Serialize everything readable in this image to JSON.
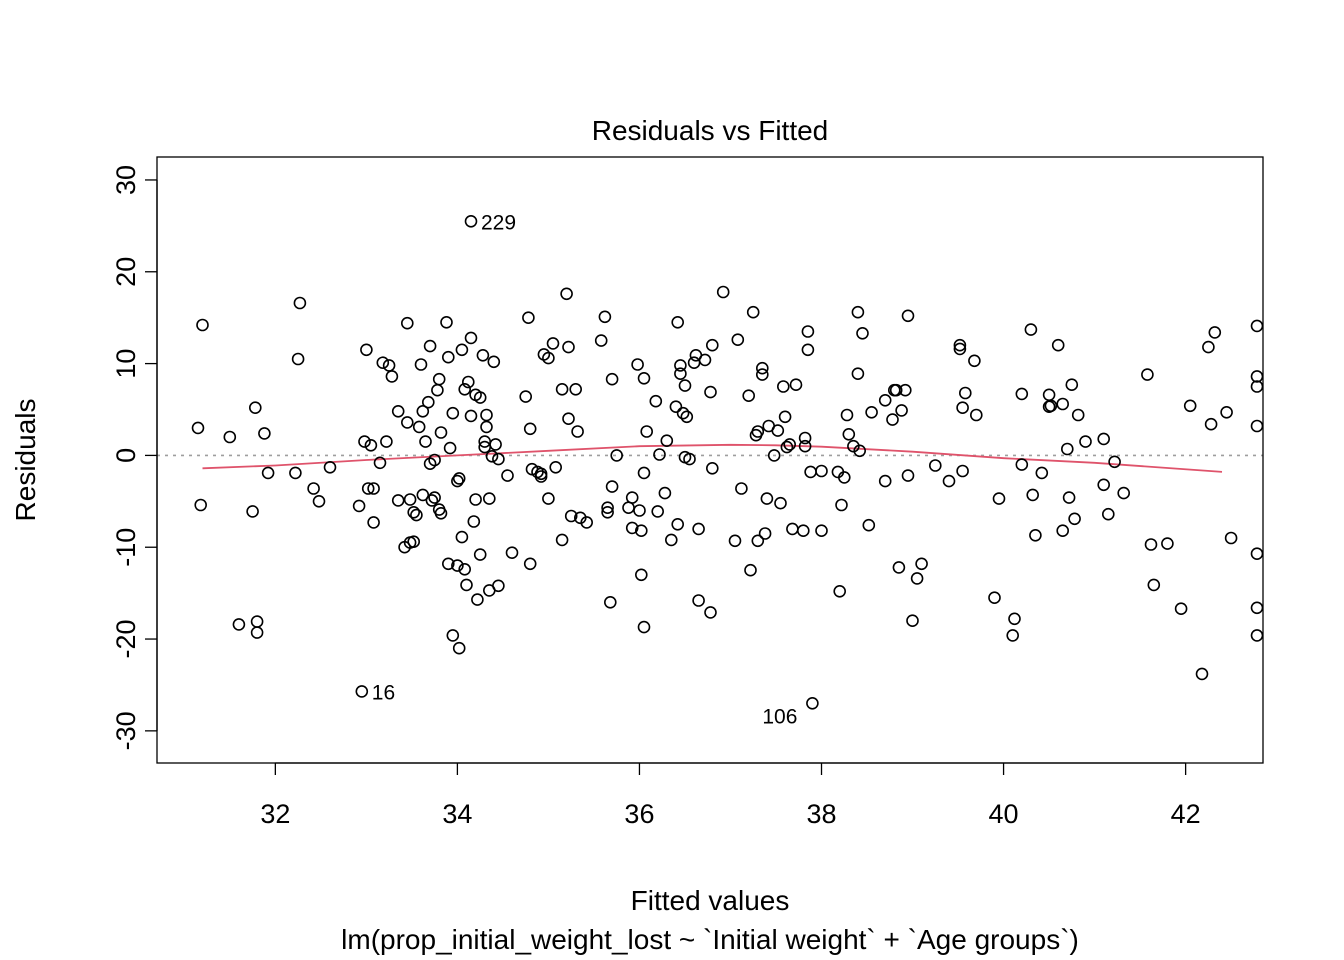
{
  "chart_data": {
    "type": "scatter",
    "title": "Residuals vs Fitted",
    "xlabel": "Fitted values",
    "subtitle": "lm(prop_initial_weight_lost ~ `Initial weight` + `Age groups`)",
    "ylabel": "Residuals",
    "xlim": [
      30.7,
      42.85
    ],
    "ylim": [
      -33.5,
      32.5
    ],
    "xticks": [
      32,
      34,
      36,
      38,
      40,
      42
    ],
    "yticks": [
      -30,
      -20,
      -10,
      0,
      10,
      20,
      30
    ],
    "xtick_labels": [
      "32",
      "34",
      "36",
      "38",
      "40",
      "42"
    ],
    "ytick_labels": [
      "-30",
      "-20",
      "-10",
      "0",
      "10",
      "20",
      "30"
    ],
    "grid": false,
    "reference_line": {
      "y": 0,
      "style": "dotted",
      "color": "#9e9e9e"
    },
    "smoother": {
      "color": "#DF536B",
      "x": [
        31.2,
        32.0,
        33.0,
        34.0,
        35.0,
        36.0,
        37.0,
        37.5,
        38.0,
        39.0,
        40.0,
        41.0,
        42.4
      ],
      "y": [
        -1.4,
        -1.1,
        -0.5,
        0.0,
        0.5,
        1.0,
        1.15,
        1.1,
        0.95,
        0.4,
        -0.3,
        -0.8,
        -1.8
      ]
    },
    "labeled_points": [
      {
        "label": "229",
        "x": 34.15,
        "y": 25.5,
        "side": "right"
      },
      {
        "label": "16",
        "x": 32.95,
        "y": -25.7,
        "side": "right"
      },
      {
        "label": "106",
        "x": 37.9,
        "y": -27.0,
        "side": "left"
      }
    ],
    "points": [
      [
        31.15,
        3.0
      ],
      [
        31.2,
        14.2
      ],
      [
        31.18,
        -5.4
      ],
      [
        31.5,
        2.0
      ],
      [
        31.6,
        -18.4
      ],
      [
        31.75,
        -6.1
      ],
      [
        31.78,
        5.2
      ],
      [
        31.8,
        -18.1
      ],
      [
        31.8,
        -19.3
      ],
      [
        31.88,
        2.4
      ],
      [
        31.92,
        -1.9
      ],
      [
        32.22,
        -1.9
      ],
      [
        32.25,
        10.5
      ],
      [
        32.27,
        16.6
      ],
      [
        32.42,
        -3.6
      ],
      [
        32.48,
        -5.0
      ],
      [
        32.6,
        -1.3
      ],
      [
        32.92,
        -5.5
      ],
      [
        32.98,
        1.5
      ],
      [
        33.0,
        11.5
      ],
      [
        33.02,
        -3.6
      ],
      [
        33.05,
        1.1
      ],
      [
        33.08,
        -3.6
      ],
      [
        33.08,
        -7.3
      ],
      [
        33.15,
        -0.8
      ],
      [
        33.18,
        10.1
      ],
      [
        33.22,
        1.5
      ],
      [
        33.25,
        9.8
      ],
      [
        33.28,
        8.6
      ],
      [
        33.35,
        4.8
      ],
      [
        33.35,
        -4.9
      ],
      [
        33.42,
        -10.0
      ],
      [
        33.45,
        14.4
      ],
      [
        33.45,
        3.6
      ],
      [
        33.48,
        -4.8
      ],
      [
        33.48,
        -9.5
      ],
      [
        33.52,
        -6.2
      ],
      [
        33.52,
        -9.4
      ],
      [
        33.55,
        -6.5
      ],
      [
        33.58,
        3.1
      ],
      [
        33.6,
        9.9
      ],
      [
        33.62,
        -4.3
      ],
      [
        33.62,
        4.8
      ],
      [
        33.65,
        1.5
      ],
      [
        33.68,
        5.8
      ],
      [
        33.7,
        11.9
      ],
      [
        33.7,
        -0.9
      ],
      [
        33.72,
        -4.9
      ],
      [
        33.75,
        -4.6
      ],
      [
        33.75,
        -0.5
      ],
      [
        33.78,
        7.1
      ],
      [
        33.8,
        8.3
      ],
      [
        33.8,
        -5.9
      ],
      [
        33.82,
        2.5
      ],
      [
        33.82,
        -6.3
      ],
      [
        33.88,
        14.5
      ],
      [
        33.9,
        10.7
      ],
      [
        33.9,
        -11.8
      ],
      [
        33.92,
        0.8
      ],
      [
        33.95,
        -19.6
      ],
      [
        33.95,
        4.6
      ],
      [
        34.0,
        -12.0
      ],
      [
        34.0,
        -2.8
      ],
      [
        34.02,
        -21.0
      ],
      [
        34.02,
        -2.5
      ],
      [
        34.05,
        -8.9
      ],
      [
        34.05,
        11.5
      ],
      [
        34.08,
        -12.4
      ],
      [
        34.08,
        7.2
      ],
      [
        34.1,
        -14.1
      ],
      [
        34.12,
        8.0
      ],
      [
        34.15,
        12.8
      ],
      [
        34.15,
        4.3
      ],
      [
        34.18,
        -7.2
      ],
      [
        34.2,
        -4.8
      ],
      [
        34.2,
        6.6
      ],
      [
        34.22,
        -15.7
      ],
      [
        34.25,
        6.3
      ],
      [
        34.25,
        -10.8
      ],
      [
        34.28,
        10.9
      ],
      [
        34.3,
        1.5
      ],
      [
        34.3,
        0.9
      ],
      [
        34.32,
        4.4
      ],
      [
        34.32,
        3.1
      ],
      [
        34.35,
        -4.7
      ],
      [
        34.35,
        -14.7
      ],
      [
        34.38,
        -0.1
      ],
      [
        34.4,
        10.2
      ],
      [
        34.42,
        1.2
      ],
      [
        34.45,
        -14.2
      ],
      [
        34.45,
        -0.4
      ],
      [
        34.55,
        -2.2
      ],
      [
        34.6,
        -10.6
      ],
      [
        34.75,
        6.4
      ],
      [
        34.78,
        15.0
      ],
      [
        34.8,
        2.9
      ],
      [
        34.8,
        -11.8
      ],
      [
        34.82,
        -1.5
      ],
      [
        34.88,
        -1.8
      ],
      [
        34.92,
        -2.0
      ],
      [
        34.92,
        -2.3
      ],
      [
        34.95,
        11.0
      ],
      [
        35.0,
        -4.7
      ],
      [
        35.0,
        10.6
      ],
      [
        35.05,
        12.2
      ],
      [
        35.08,
        -1.3
      ],
      [
        35.15,
        7.2
      ],
      [
        35.15,
        -9.2
      ],
      [
        35.2,
        17.6
      ],
      [
        35.22,
        11.8
      ],
      [
        35.22,
        4.0
      ],
      [
        35.25,
        -6.6
      ],
      [
        35.3,
        7.2
      ],
      [
        35.32,
        2.6
      ],
      [
        35.35,
        -6.8
      ],
      [
        35.42,
        -7.3
      ],
      [
        35.58,
        12.5
      ],
      [
        35.62,
        15.1
      ],
      [
        35.65,
        -5.7
      ],
      [
        35.65,
        -6.2
      ],
      [
        35.68,
        -16.0
      ],
      [
        35.7,
        8.3
      ],
      [
        35.7,
        -3.4
      ],
      [
        35.75,
        0.0
      ],
      [
        35.88,
        -5.7
      ],
      [
        35.92,
        -7.9
      ],
      [
        35.92,
        -4.6
      ],
      [
        35.98,
        9.9
      ],
      [
        36.0,
        -6.0
      ],
      [
        36.02,
        -8.2
      ],
      [
        36.02,
        -13.0
      ],
      [
        36.05,
        8.4
      ],
      [
        36.05,
        -1.9
      ],
      [
        36.05,
        -18.7
      ],
      [
        36.08,
        2.6
      ],
      [
        36.18,
        5.9
      ],
      [
        36.2,
        -6.1
      ],
      [
        36.22,
        0.1
      ],
      [
        36.28,
        -4.1
      ],
      [
        36.3,
        1.6
      ],
      [
        36.35,
        -9.2
      ],
      [
        36.4,
        5.3
      ],
      [
        36.42,
        -7.5
      ],
      [
        36.42,
        14.5
      ],
      [
        36.45,
        9.8
      ],
      [
        36.45,
        8.9
      ],
      [
        36.48,
        4.6
      ],
      [
        36.5,
        -0.2
      ],
      [
        36.5,
        7.6
      ],
      [
        36.52,
        4.2
      ],
      [
        36.55,
        -0.4
      ],
      [
        36.6,
        10.1
      ],
      [
        36.62,
        10.9
      ],
      [
        36.65,
        -8.0
      ],
      [
        36.65,
        -15.8
      ],
      [
        36.72,
        10.4
      ],
      [
        36.78,
        6.9
      ],
      [
        36.78,
        -17.1
      ],
      [
        36.8,
        -1.4
      ],
      [
        36.8,
        12.0
      ],
      [
        36.92,
        17.8
      ],
      [
        37.05,
        -9.3
      ],
      [
        37.08,
        12.6
      ],
      [
        37.12,
        -3.6
      ],
      [
        37.2,
        6.5
      ],
      [
        37.22,
        -12.5
      ],
      [
        37.25,
        15.6
      ],
      [
        37.28,
        2.2
      ],
      [
        37.3,
        -9.3
      ],
      [
        37.3,
        2.6
      ],
      [
        37.35,
        9.5
      ],
      [
        37.35,
        8.8
      ],
      [
        37.38,
        -8.5
      ],
      [
        37.4,
        -4.7
      ],
      [
        37.42,
        3.2
      ],
      [
        37.48,
        0.0
      ],
      [
        37.52,
        2.7
      ],
      [
        37.55,
        -5.2
      ],
      [
        37.58,
        7.5
      ],
      [
        37.6,
        4.2
      ],
      [
        37.62,
        0.9
      ],
      [
        37.65,
        1.2
      ],
      [
        37.68,
        -8.0
      ],
      [
        37.72,
        7.7
      ],
      [
        37.8,
        -8.2
      ],
      [
        37.82,
        1.9
      ],
      [
        37.82,
        1.0
      ],
      [
        37.85,
        13.5
      ],
      [
        37.85,
        11.5
      ],
      [
        37.88,
        -1.8
      ],
      [
        38.0,
        -8.2
      ],
      [
        38.0,
        -1.7
      ],
      [
        38.18,
        -1.8
      ],
      [
        38.2,
        -14.8
      ],
      [
        38.22,
        -5.4
      ],
      [
        38.25,
        -2.4
      ],
      [
        38.28,
        4.4
      ],
      [
        38.3,
        2.3
      ],
      [
        38.35,
        1.0
      ],
      [
        38.4,
        8.9
      ],
      [
        38.4,
        15.6
      ],
      [
        38.42,
        0.5
      ],
      [
        38.45,
        13.3
      ],
      [
        38.52,
        -7.6
      ],
      [
        38.55,
        4.7
      ],
      [
        38.7,
        -2.8
      ],
      [
        38.7,
        6.0
      ],
      [
        38.78,
        3.9
      ],
      [
        38.8,
        7.1
      ],
      [
        38.82,
        7.1
      ],
      [
        38.85,
        -12.2
      ],
      [
        38.88,
        4.9
      ],
      [
        38.92,
        7.1
      ],
      [
        38.95,
        15.2
      ],
      [
        38.95,
        -2.2
      ],
      [
        39.0,
        -18.0
      ],
      [
        39.05,
        -13.4
      ],
      [
        39.1,
        -11.8
      ],
      [
        39.25,
        -1.1
      ],
      [
        39.4,
        -2.8
      ],
      [
        39.52,
        11.6
      ],
      [
        39.52,
        12.0
      ],
      [
        39.55,
        -1.7
      ],
      [
        39.55,
        5.2
      ],
      [
        39.58,
        6.8
      ],
      [
        39.68,
        10.3
      ],
      [
        39.7,
        4.4
      ],
      [
        39.9,
        -15.5
      ],
      [
        39.95,
        -4.7
      ],
      [
        40.1,
        -19.6
      ],
      [
        40.12,
        -17.8
      ],
      [
        40.2,
        6.7
      ],
      [
        40.2,
        -1.0
      ],
      [
        40.3,
        13.7
      ],
      [
        40.32,
        -4.3
      ],
      [
        40.35,
        -8.7
      ],
      [
        40.42,
        -1.9
      ],
      [
        40.5,
        5.3
      ],
      [
        40.5,
        6.6
      ],
      [
        40.52,
        5.4
      ],
      [
        40.6,
        12.0
      ],
      [
        40.65,
        -8.2
      ],
      [
        40.65,
        5.6
      ],
      [
        40.7,
        0.7
      ],
      [
        40.72,
        -4.6
      ],
      [
        40.75,
        7.7
      ],
      [
        40.78,
        -6.9
      ],
      [
        40.82,
        4.4
      ],
      [
        40.9,
        1.5
      ],
      [
        41.1,
        1.8
      ],
      [
        41.1,
        -3.2
      ],
      [
        41.15,
        -6.4
      ],
      [
        41.22,
        -0.7
      ],
      [
        41.32,
        -4.1
      ],
      [
        41.58,
        8.8
      ],
      [
        41.62,
        -9.7
      ],
      [
        41.65,
        -14.1
      ],
      [
        41.8,
        -9.6
      ],
      [
        41.95,
        -16.7
      ],
      [
        42.05,
        5.4
      ],
      [
        42.18,
        -23.8
      ],
      [
        42.25,
        11.8
      ],
      [
        42.28,
        3.4
      ],
      [
        42.32,
        13.4
      ],
      [
        42.45,
        4.7
      ],
      [
        42.5,
        -9.0
      ],
      [
        42.9,
        14.1
      ],
      [
        43.05,
        8.6
      ],
      [
        43.1,
        -10.7
      ],
      [
        43.2,
        -19.6
      ],
      [
        43.35,
        7.5
      ],
      [
        43.4,
        3.2
      ],
      [
        43.8,
        -16.6
      ]
    ]
  }
}
